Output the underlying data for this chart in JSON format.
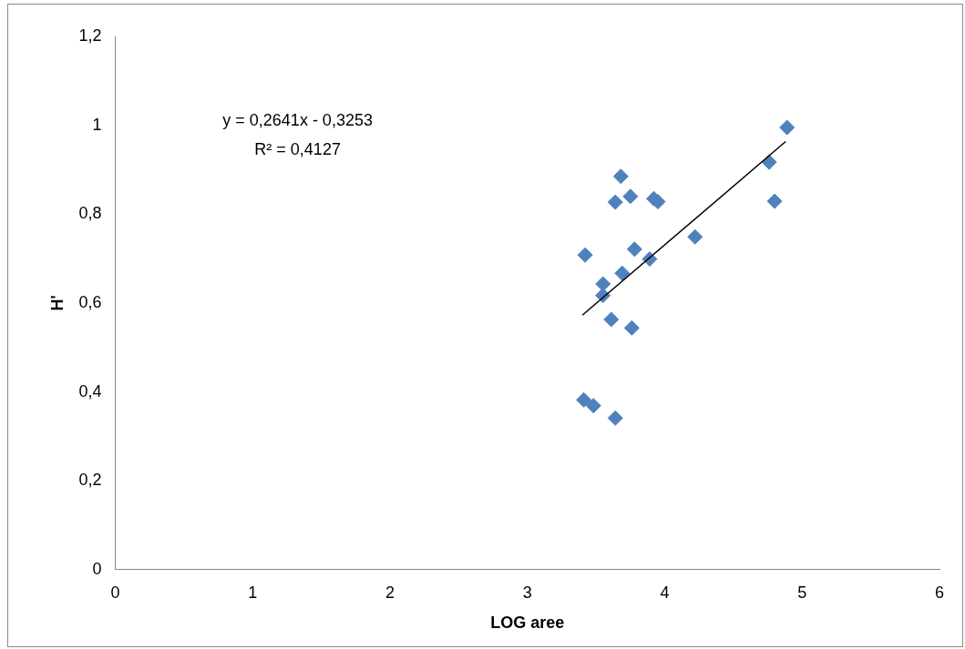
{
  "chart_data": {
    "type": "scatter",
    "xlabel": "LOG aree",
    "ylabel": "H'",
    "xlim": [
      0,
      6
    ],
    "xticks": [
      0,
      1,
      2,
      3,
      4,
      5,
      6
    ],
    "ylim": [
      0,
      1.2
    ],
    "yticks": [
      {
        "value": 0,
        "label": "0"
      },
      {
        "value": 0.2,
        "label": "0,2"
      },
      {
        "value": 0.4,
        "label": "0,4"
      },
      {
        "value": 0.6,
        "label": "0,6"
      },
      {
        "value": 0.8,
        "label": "0,8"
      },
      {
        "value": 1,
        "label": "1"
      },
      {
        "value": 1.2,
        "label": "1,2"
      }
    ],
    "grid": false,
    "legend": false,
    "marker": "diamond",
    "annotations": [
      "y = 0,2641x - 0,3253",
      "R² = 0,4127"
    ],
    "series": [
      {
        "color": "#4f81bd",
        "x": [
          3.42,
          3.68,
          3.64,
          3.75,
          3.92,
          3.95,
          3.78,
          3.69,
          3.89,
          3.55,
          3.55,
          3.61,
          3.76,
          3.41,
          3.48,
          3.64,
          4.22,
          4.76,
          4.8,
          4.89
        ],
        "values": [
          0.708,
          0.885,
          0.827,
          0.84,
          0.835,
          0.828,
          0.721,
          0.667,
          0.699,
          0.643,
          0.617,
          0.563,
          0.544,
          0.382,
          0.369,
          0.341,
          0.749,
          0.917,
          0.829,
          0.995
        ]
      },
      {
        "type": "line",
        "color": "#000000",
        "marker": "none",
        "x": [
          3.4,
          4.88
        ],
        "values": [
          0.5726,
          0.9635
        ]
      }
    ]
  }
}
